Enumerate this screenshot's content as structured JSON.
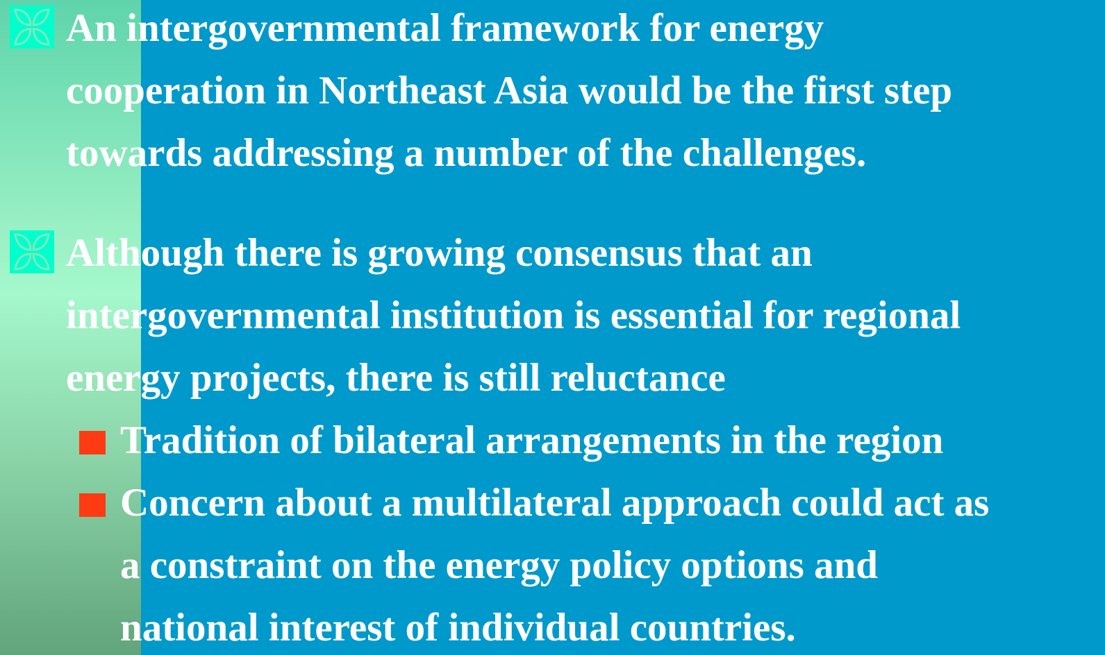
{
  "slide": {
    "bullets": [
      {
        "lines": [
          "An intergovernmental framework for energy",
          "cooperation in Northeast Asia would be the first step",
          "towards addressing a number of the challenges."
        ],
        "sub_bullets": []
      },
      {
        "lines": [
          "Although there is growing consensus that an",
          "intergovernmental institution is essential for regional",
          "energy projects, there is still reluctance"
        ],
        "sub_bullets": [
          {
            "lines": [
              "Tradition of bilateral arrangements in the region"
            ]
          },
          {
            "lines": [
              "Concern about a multilateral approach could act as",
              "a constraint on the energy policy options and",
              "national interest of individual countries."
            ]
          }
        ]
      }
    ]
  }
}
